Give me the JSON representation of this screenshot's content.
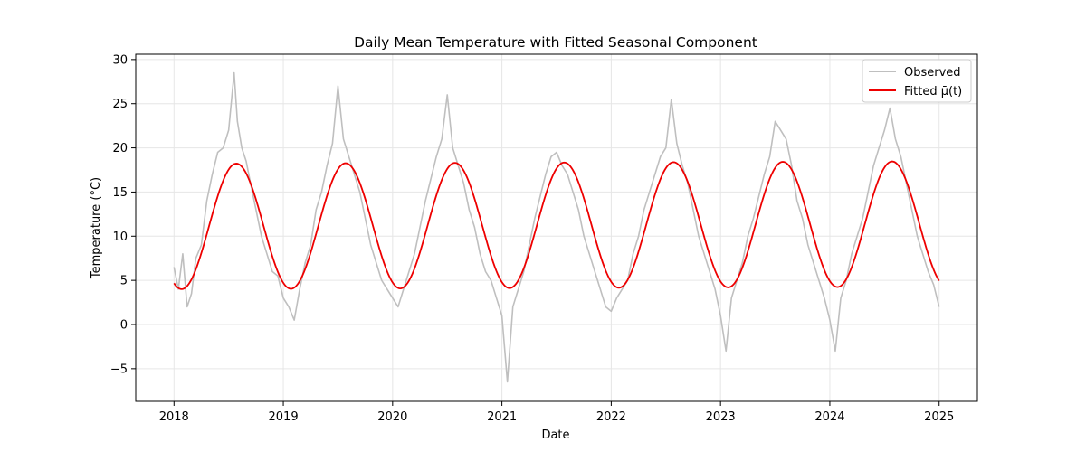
{
  "chart_data": {
    "type": "line",
    "title": "Daily Mean Temperature with Fitted Seasonal Component",
    "xlabel": "Date",
    "ylabel": "Temperature (°C)",
    "xlim": [
      2017.65,
      2025.35
    ],
    "ylim": [
      -8.7,
      30.6
    ],
    "xticks": [
      2018,
      2019,
      2020,
      2021,
      2022,
      2023,
      2024,
      2025
    ],
    "xtick_labels": [
      "2018",
      "2019",
      "2020",
      "2021",
      "2022",
      "2023",
      "2024",
      "2025"
    ],
    "yticks": [
      -5,
      0,
      5,
      10,
      15,
      20,
      25,
      30
    ],
    "ytick_labels": [
      "−5",
      "0",
      "5",
      "10",
      "15",
      "20",
      "25",
      "30"
    ],
    "grid": true,
    "legend_position": "top-right",
    "series": [
      {
        "name": "Observed",
        "color": "#bfbfbf",
        "note_style": "noisy daily observations",
        "x": [
          2018.0,
          2018.04,
          2018.08,
          2018.12,
          2018.16,
          2018.2,
          2018.25,
          2018.3,
          2018.35,
          2018.4,
          2018.45,
          2018.5,
          2018.55,
          2018.58,
          2018.62,
          2018.66,
          2018.7,
          2018.75,
          2018.8,
          2018.85,
          2018.9,
          2018.95,
          2019.0,
          2019.05,
          2019.1,
          2019.15,
          2019.2,
          2019.25,
          2019.3,
          2019.35,
          2019.4,
          2019.45,
          2019.5,
          2019.55,
          2019.6,
          2019.65,
          2019.7,
          2019.75,
          2019.8,
          2019.85,
          2019.9,
          2019.95,
          2020.0,
          2020.05,
          2020.1,
          2020.15,
          2020.2,
          2020.25,
          2020.3,
          2020.35,
          2020.4,
          2020.45,
          2020.5,
          2020.55,
          2020.6,
          2020.65,
          2020.7,
          2020.75,
          2020.8,
          2020.85,
          2020.9,
          2020.95,
          2021.0,
          2021.05,
          2021.1,
          2021.15,
          2021.2,
          2021.25,
          2021.3,
          2021.35,
          2021.4,
          2021.45,
          2021.5,
          2021.55,
          2021.6,
          2021.65,
          2021.7,
          2021.75,
          2021.8,
          2021.85,
          2021.9,
          2021.95,
          2022.0,
          2022.05,
          2022.1,
          2022.15,
          2022.2,
          2022.25,
          2022.3,
          2022.35,
          2022.4,
          2022.45,
          2022.5,
          2022.55,
          2022.6,
          2022.65,
          2022.7,
          2022.75,
          2022.8,
          2022.85,
          2022.9,
          2022.95,
          2023.0,
          2023.05,
          2023.1,
          2023.15,
          2023.2,
          2023.25,
          2023.3,
          2023.35,
          2023.4,
          2023.45,
          2023.5,
          2023.55,
          2023.6,
          2023.65,
          2023.7,
          2023.75,
          2023.8,
          2023.85,
          2023.9,
          2023.95,
          2024.0,
          2024.05,
          2024.1,
          2024.15,
          2024.2,
          2024.25,
          2024.3,
          2024.35,
          2024.4,
          2024.45,
          2024.5,
          2024.55,
          2024.6,
          2024.65,
          2024.7,
          2024.75,
          2024.8,
          2024.85,
          2024.9,
          2024.95,
          2025.0
        ],
        "y": [
          6.5,
          4.0,
          8.0,
          2.0,
          3.5,
          7.5,
          9.0,
          14.0,
          17.0,
          19.5,
          20.0,
          22.0,
          28.5,
          23.0,
          20.0,
          18.5,
          16.0,
          13.0,
          10.0,
          8.0,
          6.0,
          5.5,
          3.0,
          2.0,
          0.5,
          4.0,
          7.0,
          9.0,
          13.0,
          15.0,
          18.0,
          20.5,
          27.0,
          21.0,
          19.0,
          17.0,
          15.0,
          12.0,
          9.0,
          7.0,
          5.0,
          4.0,
          3.0,
          2.0,
          4.0,
          6.0,
          8.0,
          11.0,
          14.0,
          16.5,
          19.0,
          21.0,
          26.0,
          20.0,
          18.0,
          16.0,
          13.0,
          11.0,
          8.0,
          6.0,
          5.0,
          3.0,
          1.0,
          -6.5,
          2.0,
          4.0,
          6.0,
          9.0,
          12.0,
          14.5,
          17.0,
          19.0,
          19.5,
          18.0,
          17.0,
          15.0,
          13.0,
          10.0,
          8.0,
          6.0,
          4.0,
          2.0,
          1.5,
          3.0,
          4.0,
          5.0,
          8.0,
          10.0,
          13.0,
          15.0,
          17.0,
          19.0,
          20.0,
          25.5,
          20.5,
          18.0,
          16.0,
          13.0,
          10.0,
          8.0,
          6.0,
          4.0,
          1.0,
          -3.0,
          3.0,
          5.0,
          7.0,
          10.0,
          12.0,
          14.5,
          17.0,
          19.0,
          23.0,
          22.0,
          21.0,
          18.0,
          14.0,
          12.0,
          9.0,
          7.0,
          5.0,
          3.0,
          0.5,
          -3.0,
          3.0,
          5.0,
          8.0,
          10.0,
          12.0,
          15.0,
          18.0,
          20.0,
          22.0,
          24.5,
          21.0,
          19.0,
          16.0,
          13.0,
          10.0,
          8.0,
          6.0,
          4.5,
          2.0
        ]
      },
      {
        "name": "Fitted μ̄(t)",
        "color": "#ee0000",
        "model": "sinusoid",
        "mean": 11.1,
        "amplitude": 7.1,
        "peak_time_fraction": 0.57,
        "trend_per_year": 0.04
      }
    ]
  }
}
